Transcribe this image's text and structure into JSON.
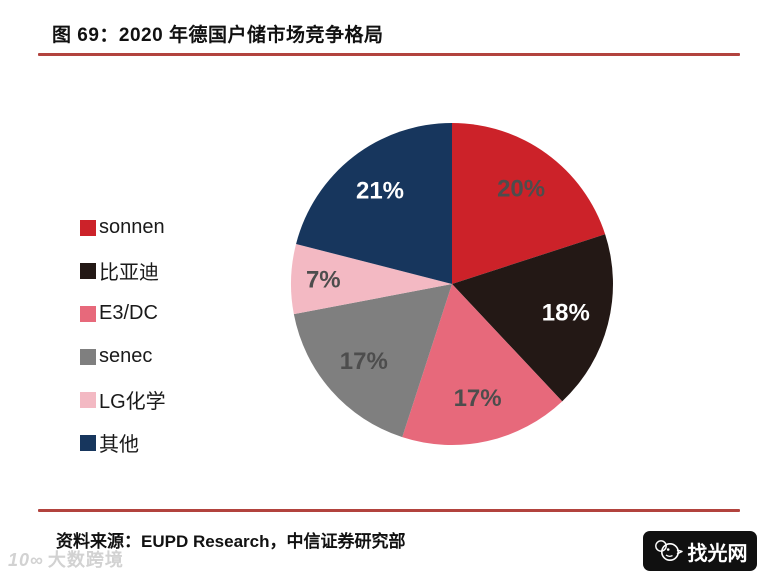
{
  "header": {
    "title": "图 69：2020 年德国户储市场竞争格局"
  },
  "chart_data": {
    "type": "pie",
    "title": "2020 年德国户储市场竞争格局",
    "categories": [
      "sonnen",
      "比亚迪",
      "E3/DC",
      "senec",
      "LG化学",
      "其他"
    ],
    "values": [
      20,
      18,
      17,
      17,
      7,
      21
    ],
    "data_labels": [
      "20%",
      "18%",
      "17%",
      "17%",
      "7%",
      "21%"
    ],
    "colors": [
      "#cc2229",
      "#231815",
      "#e7697b",
      "#7f7f7f",
      "#f3b9c3",
      "#17365d"
    ],
    "label_colors": [
      "#4d4d4d",
      "#ffffff",
      "#4d4d4d",
      "#4d4d4d",
      "#4d4d4d",
      "#ffffff"
    ],
    "legend_position": "left",
    "start_angle_deg": 0,
    "direction": "clockwise",
    "total": 100
  },
  "footer": {
    "source": "资料来源：EUPD Research，中信证券研究部",
    "watermark_logo": "10∞",
    "watermark_text": "大数跨境",
    "badge_text": "找光网"
  },
  "style_colors": {
    "accent_rule": "#b2433e",
    "badge_background": "#101010",
    "title_text": "#111111",
    "watermark_text": "#d2d2d2"
  }
}
